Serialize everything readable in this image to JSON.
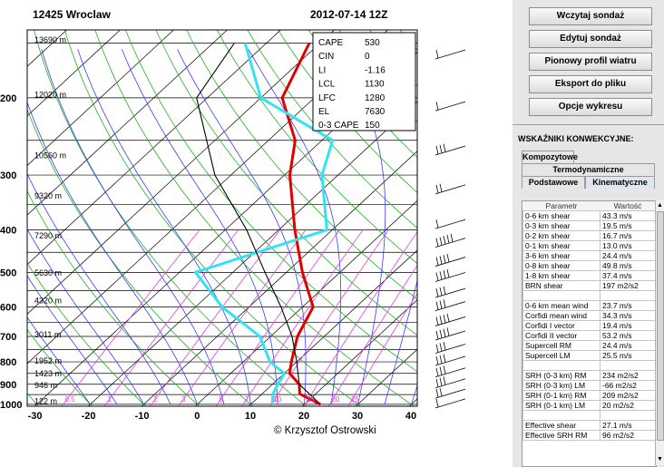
{
  "header": {
    "station": "12425 Wroclaw",
    "datetime": "2012-07-14 12Z"
  },
  "indices": [
    {
      "label": "CAPE",
      "value": "530"
    },
    {
      "label": "CIN",
      "value": "0"
    },
    {
      "label": "LI",
      "value": "-1.16"
    },
    {
      "label": "LCL",
      "value": "1130"
    },
    {
      "label": "LFC",
      "value": "1280"
    },
    {
      "label": "EL",
      "value": "7630"
    },
    {
      "label": "0-3 CAPE",
      "value": "150"
    }
  ],
  "pressure_labels": [
    "200",
    "300",
    "400",
    "500",
    "600",
    "700",
    "800",
    "900",
    "1000"
  ],
  "temp_labels": [
    "-30",
    "-20",
    "-10",
    "0",
    "10",
    "20",
    "30",
    "40"
  ],
  "height_labels": [
    "13690 m",
    "12020 m",
    "10560 m",
    "9320 m",
    "7290 m",
    "5630 m",
    "4320 m",
    "3011 m",
    "1952 m",
    "1423 m",
    "946 m",
    "122 m"
  ],
  "mixing_ratio_labels": [
    "0.5",
    "1",
    "2",
    "3",
    "5",
    "7",
    "10",
    "15",
    "20",
    "25"
  ],
  "copyright": "© Krzysztof Ostrowski",
  "chart_data": {
    "type": "line",
    "x_range": [
      -30,
      40
    ],
    "y_axis": "pressure (hPa)",
    "series": [
      {
        "kind": "temperature",
        "color": "#e00000",
        "points": [
          [
            1000,
            23
          ],
          [
            946,
            17
          ],
          [
            900,
            15
          ],
          [
            850,
            11
          ],
          [
            800,
            9
          ],
          [
            700,
            5
          ],
          [
            600,
            2
          ],
          [
            500,
            -7
          ],
          [
            400,
            -17
          ],
          [
            300,
            -29
          ],
          [
            250,
            -35
          ],
          [
            200,
            -46
          ],
          [
            150,
            -52
          ]
        ]
      },
      {
        "kind": "dewpoint",
        "color": "#33e3f5",
        "points": [
          [
            1000,
            14
          ],
          [
            946,
            12
          ],
          [
            900,
            11
          ],
          [
            850,
            10
          ],
          [
            800,
            5
          ],
          [
            700,
            -2
          ],
          [
            600,
            -15
          ],
          [
            500,
            -27
          ],
          [
            400,
            -11
          ],
          [
            300,
            -23
          ],
          [
            250,
            -28
          ],
          [
            200,
            -50
          ],
          [
            150,
            -64
          ]
        ]
      },
      {
        "kind": "parcel",
        "color": "#000000",
        "points": [
          [
            1000,
            23
          ],
          [
            900,
            15
          ],
          [
            800,
            10
          ],
          [
            700,
            4
          ],
          [
            600,
            -4
          ],
          [
            500,
            -14
          ],
          [
            400,
            -26
          ],
          [
            300,
            -43
          ],
          [
            200,
            -62
          ],
          [
            150,
            -66
          ]
        ]
      }
    ],
    "winds": [
      {
        "p": 160,
        "type": "flag"
      },
      {
        "p": 210,
        "type": "flag"
      },
      {
        "p": 265,
        "type": "flag3"
      },
      {
        "p": 325,
        "type": "flag2"
      },
      {
        "p": 390,
        "type": "flag"
      },
      {
        "p": 430,
        "type": "barb5"
      },
      {
        "p": 475,
        "type": "barb4"
      },
      {
        "p": 515,
        "type": "barb4"
      },
      {
        "p": 560,
        "type": "barb3"
      },
      {
        "p": 600,
        "type": "barb3"
      },
      {
        "p": 650,
        "type": "barb4"
      },
      {
        "p": 700,
        "type": "barb4"
      },
      {
        "p": 750,
        "type": "barb3"
      },
      {
        "p": 800,
        "type": "barb3"
      },
      {
        "p": 850,
        "type": "barb3"
      },
      {
        "p": 900,
        "type": "barb3"
      },
      {
        "p": 950,
        "type": "barb2"
      },
      {
        "p": 1000,
        "type": "barb1"
      }
    ]
  },
  "panel": {
    "buttons": [
      "Wczytaj sondaż",
      "Edytuj sondaż",
      "Pionowy profil wiatru",
      "Eksport do pliku",
      "Opcje wykresu"
    ],
    "section_title": "WSKAŹNIKI KONWEKCYJNE:",
    "tabs_row1": [
      "Kompozytowe"
    ],
    "tabs_row2": [
      "Termodynamiczne"
    ],
    "tabs_row3": [
      "Podstawowe",
      "Kinematyczne"
    ],
    "table_headers": [
      "Parametr",
      "Wartość"
    ],
    "rows": [
      [
        "0-6 km shear",
        "43.3 m/s"
      ],
      [
        "0-3 km shear",
        "19.5 m/s"
      ],
      [
        "0-2 km shear",
        "16.7 m/s"
      ],
      [
        "0-1 km shear",
        "13.0 m/s"
      ],
      [
        "3-6 km shear",
        "24.4 m/s"
      ],
      [
        "0-8 km shear",
        "49.8 m/s"
      ],
      [
        "1-8 km shear",
        "37.4 m/s"
      ],
      [
        "BRN shear",
        "197 m2/s2"
      ],
      [
        "",
        ""
      ],
      [
        "0-6 km mean wind",
        "23.7 m/s"
      ],
      [
        "Corfidi mean wind",
        "34.3 m/s"
      ],
      [
        "Corfidi I vector",
        "19.4 m/s"
      ],
      [
        "Corfidi II vector",
        "53.2 m/s"
      ],
      [
        "Supercell RM",
        "24.4 m/s"
      ],
      [
        "Supercell LM",
        "25.5 m/s"
      ],
      [
        "",
        ""
      ],
      [
        "SRH (0-3 km) RM",
        "234 m2/s2"
      ],
      [
        "SRH (0-3 km) LM",
        "-66 m2/s2"
      ],
      [
        "SRH (0-1 km) RM",
        "209 m2/s2"
      ],
      [
        "SRH (0-1 km) LM",
        "20 m2/s2"
      ],
      [
        "",
        ""
      ],
      [
        "Effective shear",
        "27.1 m/s"
      ],
      [
        "Effective SRH RM",
        "96 m2/s2"
      ]
    ]
  }
}
